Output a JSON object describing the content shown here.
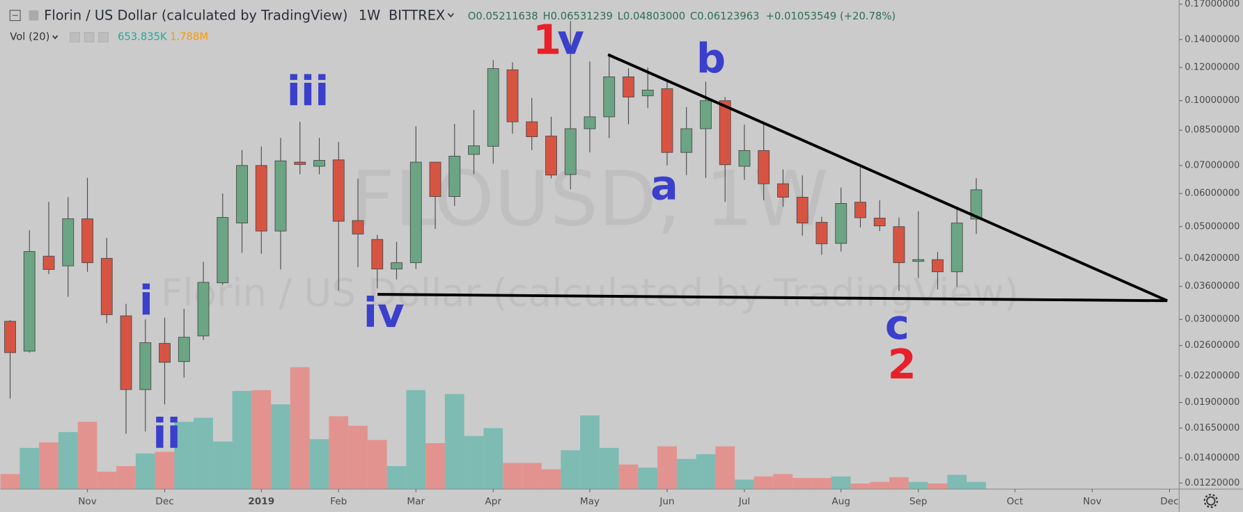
{
  "chart_data": {
    "type": "candlestick",
    "title": "Florin / US Dollar (calculated by TradingView)",
    "interval": "1W",
    "exchange": "BITTREX",
    "watermark": "FLOUSD, 1W",
    "ohlc_legend": [
      {
        "label": "O",
        "value": "0.05211638"
      },
      {
        "label": "H",
        "value": "0.06531239"
      },
      {
        "label": "L",
        "value": "0.04803000"
      },
      {
        "label": "C",
        "value": "0.06123963"
      }
    ],
    "change": "+0.01053549 (+20.78%)",
    "volume_legend": {
      "name": "Vol (20)",
      "last": "653.835K",
      "ma": "1.788M"
    },
    "up_color": "#6ba583",
    "down_color": "#d75442",
    "volume_up_color": "#7dbbb3",
    "volume_down_color": "#e3938f",
    "open": [
      0.0297,
      0.0252,
      0.0425,
      0.0403,
      0.0522,
      0.042,
      0.0306,
      0.0204,
      0.0263,
      0.0238,
      0.0274,
      0.0367,
      0.051,
      0.07,
      0.0488,
      0.0713,
      0.0697,
      0.0722,
      0.0517,
      0.0466,
      0.0396,
      0.041,
      0.0713,
      0.059,
      0.0744,
      0.0778,
      0.1185,
      0.089,
      0.0823,
      0.0666,
      0.0857,
      0.0915,
      0.114,
      0.1027,
      0.1068,
      0.0752,
      0.0857,
      0.1,
      0.0697,
      0.076,
      0.0633,
      0.0588,
      0.0512,
      0.0456,
      0.0572,
      0.0524,
      0.05,
      0.0413,
      0.0417,
      0.039,
      0.05211638
    ],
    "high": [
      0.0299,
      0.049,
      0.0573,
      0.0588,
      0.0654,
      0.047,
      0.0327,
      0.03,
      0.0303,
      0.0318,
      0.0412,
      0.06,
      0.0762,
      0.0777,
      0.0815,
      0.089,
      0.0815,
      0.0797,
      0.0651,
      0.0478,
      0.046,
      0.0868,
      0.0713,
      0.088,
      0.095,
      0.125,
      0.1235,
      0.1015,
      0.0915,
      0.155,
      0.124,
      0.128,
      0.1195,
      0.12,
      0.111,
      0.0965,
      0.111,
      0.102,
      0.0876,
      0.088,
      0.0685,
      0.0663,
      0.0528,
      0.062,
      0.0706,
      0.0578,
      0.0526,
      0.0544,
      0.0435,
      0.0555,
      0.06531239
    ],
    "low": [
      0.0194,
      0.025,
      0.0385,
      0.034,
      0.039,
      0.0294,
      0.016,
      0.0162,
      0.0188,
      0.0218,
      0.0268,
      0.0363,
      0.0433,
      0.0431,
      0.0395,
      0.0667,
      0.0667,
      0.0352,
      0.04,
      0.0356,
      0.0374,
      0.0396,
      0.0494,
      0.056,
      0.0667,
      0.0707,
      0.0834,
      0.0762,
      0.0652,
      0.0614,
      0.0752,
      0.0814,
      0.0878,
      0.096,
      0.07,
      0.0664,
      0.0654,
      0.0573,
      0.0647,
      0.0578,
      0.0558,
      0.0476,
      0.0428,
      0.0436,
      0.0498,
      0.0488,
      0.0351,
      0.0377,
      0.0354,
      0.0359,
      0.04803
    ],
    "close": [
      0.025,
      0.0436,
      0.0395,
      0.0522,
      0.041,
      0.0308,
      0.0204,
      0.0264,
      0.0237,
      0.0272,
      0.0368,
      0.0526,
      0.07,
      0.0488,
      0.0718,
      0.0704,
      0.072,
      0.0515,
      0.048,
      0.0396,
      0.041,
      0.0713,
      0.059,
      0.0737,
      0.078,
      0.1193,
      0.089,
      0.082,
      0.0664,
      0.0857,
      0.0915,
      0.114,
      0.102,
      0.106,
      0.0752,
      0.0857,
      0.1,
      0.0703,
      0.076,
      0.0633,
      0.0588,
      0.051,
      0.0455,
      0.0568,
      0.0525,
      0.0502,
      0.041,
      0.0417,
      0.039,
      0.051,
      0.06123963
    ],
    "volume": [
      1380000,
      3778000,
      4286000,
      5231000,
      6175000,
      1598000,
      2107000,
      3269000,
      3415000,
      6175000,
      6539000,
      4359000,
      9009000,
      9081000,
      7774000,
      11188000,
      4577000,
      6684000,
      5812000,
      4504000,
      2107000,
      9081000,
      4214000,
      8718000,
      4868000,
      5594000,
      2397000,
      2397000,
      1816000,
      3560000,
      6756000,
      3778000,
      2252000,
      1962000,
      3923000,
      2761000,
      3197000,
      3923000,
      872000,
      1162000,
      1380000,
      1017000,
      1017000,
      1162000,
      509000,
      654000,
      1090000,
      654000,
      509000,
      1308000,
      653835
    ],
    "log_scale": true,
    "grid": false,
    "ylim": [
      0.0118,
      0.174
    ],
    "yticks": [
      {
        "value": 0.17,
        "label": "0.17000000"
      },
      {
        "value": 0.14,
        "label": "0.14000000"
      },
      {
        "value": 0.12,
        "label": "0.12000000"
      },
      {
        "value": 0.1,
        "label": "0.10000000"
      },
      {
        "value": 0.085,
        "label": "0.08500000"
      },
      {
        "value": 0.07,
        "label": "0.07000000"
      },
      {
        "value": 0.06,
        "label": "0.06000000"
      },
      {
        "value": 0.05,
        "label": "0.05000000"
      },
      {
        "value": 0.042,
        "label": "0.04200000"
      },
      {
        "value": 0.036,
        "label": "0.03600000"
      },
      {
        "value": 0.03,
        "label": "0.03000000"
      },
      {
        "value": 0.026,
        "label": "0.02600000"
      },
      {
        "value": 0.022,
        "label": "0.02200000"
      },
      {
        "value": 0.019,
        "label": "0.01900000"
      },
      {
        "value": 0.0165,
        "label": "0.01650000"
      },
      {
        "value": 0.014,
        "label": "0.01400000"
      },
      {
        "value": 0.0122,
        "label": "0.01220000"
      }
    ],
    "xlim": [
      -0.5,
      60.5
    ],
    "xticks": [
      {
        "value": 4,
        "label": "Nov"
      },
      {
        "value": 8,
        "label": "Dec"
      },
      {
        "value": 13,
        "label": "2019"
      },
      {
        "value": 17,
        "label": "Feb"
      },
      {
        "value": 21,
        "label": "Mar"
      },
      {
        "value": 25,
        "label": "Apr"
      },
      {
        "value": 30,
        "label": "May"
      },
      {
        "value": 34,
        "label": "Jun"
      },
      {
        "value": 38,
        "label": "Jul"
      },
      {
        "value": 43,
        "label": "Aug"
      },
      {
        "value": 47,
        "label": "Sep"
      },
      {
        "value": 52,
        "label": "Oct"
      },
      {
        "value": 56,
        "label": "Nov"
      },
      {
        "value": 60,
        "label": "Dec"
      }
    ],
    "annotations": [
      {
        "text": "iii",
        "color": "#3a3fcc"
      },
      {
        "text": "i",
        "color": "#3a3fcc"
      },
      {
        "text": "ii",
        "color": "#3a3fcc"
      },
      {
        "text": "iv",
        "color": "#3a3fcc"
      },
      {
        "text": "1",
        "color": "#e8202a"
      },
      {
        "text": "v",
        "color": "#3a3fcc"
      },
      {
        "text": "b",
        "color": "#3a3fcc"
      },
      {
        "text": "a",
        "color": "#3a3fcc"
      },
      {
        "text": "c",
        "color": "#3a3fcc"
      },
      {
        "text": "2",
        "color": "#e8202a"
      }
    ]
  }
}
